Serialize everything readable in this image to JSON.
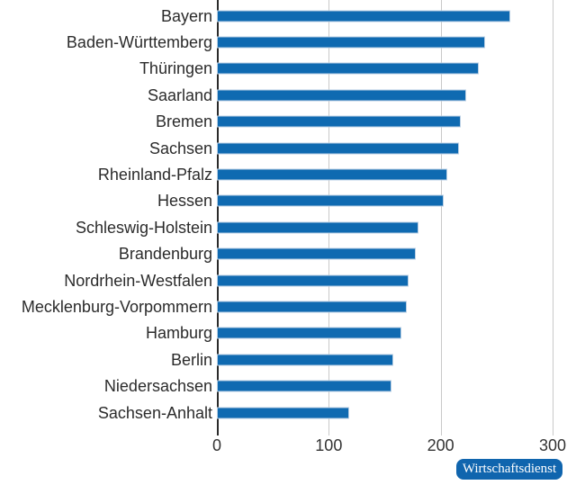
{
  "chart_data": {
    "type": "bar",
    "orientation": "horizontal",
    "title": "",
    "xlabel": "",
    "ylabel": "",
    "categories": [
      "Bayern",
      "Baden-Württemberg",
      "Thüringen",
      "Saarland",
      "Bremen",
      "Sachsen",
      "Rheinland-Pfalz",
      "Hessen",
      "Schleswig-Holstein",
      "Brandenburg",
      "Nordrhein-Westfalen",
      "Mecklenburg-Vorpommern",
      "Hamburg",
      "Berlin",
      "Niedersachsen",
      "Sachsen-Anhalt"
    ],
    "values": [
      262,
      240,
      234,
      223,
      218,
      216,
      206,
      203,
      180,
      178,
      171,
      170,
      165,
      158,
      156,
      118
    ],
    "xlim": [
      0,
      300
    ],
    "x_ticks": [
      0,
      100,
      200,
      300
    ],
    "grid": true,
    "legend": "none",
    "bar_color": "#0f6ab1",
    "gridline_color": "#c9c9c9",
    "axis_color": "#2b2b2b"
  },
  "source_badge": {
    "label": "Wirtschaftsdienst",
    "bg_color": "#1065ae",
    "text_color": "#ffffff"
  }
}
